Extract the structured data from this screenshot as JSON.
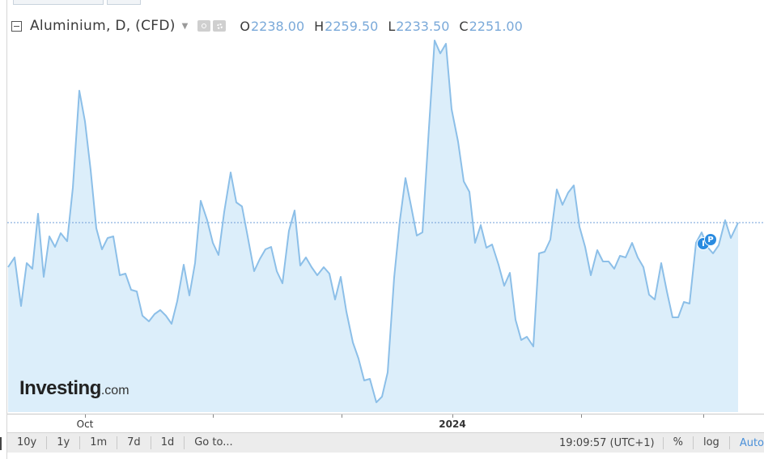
{
  "legend": {
    "symbol": "Aluminium, D, (CFD)",
    "ohlc": [
      {
        "key": "O",
        "value": "2238.00"
      },
      {
        "key": "H",
        "value": "2259.50"
      },
      {
        "key": "L",
        "value": "2233.50"
      },
      {
        "key": "C",
        "value": "2251.00"
      }
    ]
  },
  "logo": {
    "brand": "Investing",
    "domain": ".com"
  },
  "xaxis": {
    "labels": [
      {
        "text": "Oct",
        "bold": false
      },
      {
        "text": "2024",
        "bold": true
      }
    ]
  },
  "events": [
    {
      "label": "I"
    },
    {
      "label": "P"
    }
  ],
  "toolbar": {
    "ranges": [
      "10y",
      "1y",
      "1m",
      "7d",
      "1d",
      "Go to..."
    ],
    "time": "19:09:57",
    "timezone": "(UTC+1)",
    "percent": "%",
    "log": "log",
    "auto": "Auto"
  },
  "colors": {
    "line": "#8cbfe8",
    "fill": "#dceefa",
    "price_line": "#6f9fd8",
    "ohlc_value": "#7aa9d9"
  }
}
